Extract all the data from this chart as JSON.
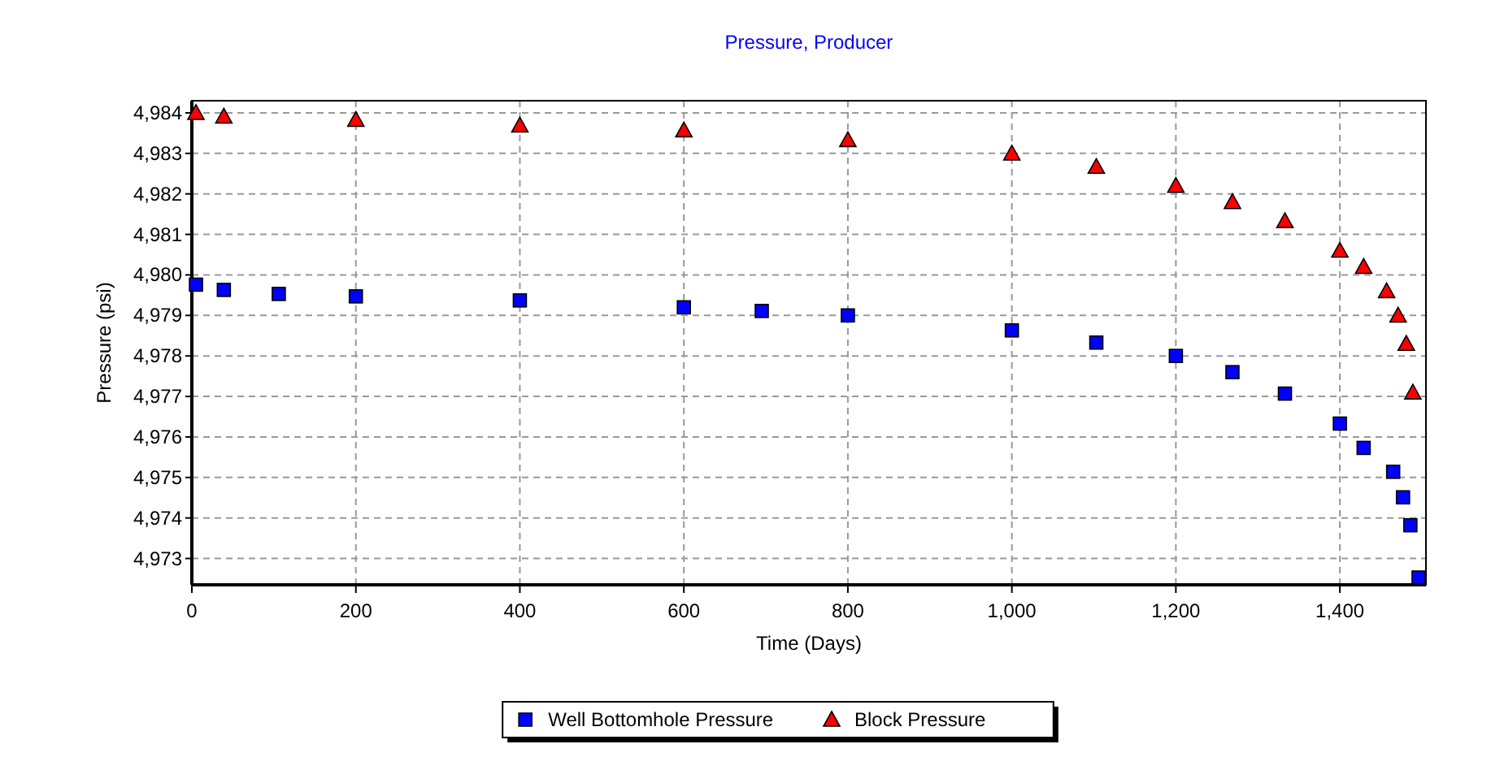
{
  "chart_data": {
    "type": "scatter",
    "title": "Pressure, Producer",
    "xlabel": "Time (Days)",
    "ylabel": "Pressure (psi)",
    "xlim": [
      0,
      1505
    ],
    "xticks": [
      0,
      200,
      400,
      600,
      800,
      {
        "value": 1000,
        "label": "1,000"
      },
      {
        "value": 1200,
        "label": "1,200"
      },
      {
        "value": 1400,
        "label": "1,400"
      }
    ],
    "ylim": [
      4972.35,
      4984.3
    ],
    "yticks": [
      {
        "value": 4973,
        "label": "4,973"
      },
      {
        "value": 4974,
        "label": "4,974"
      },
      {
        "value": 4975,
        "label": "4,975"
      },
      {
        "value": 4976,
        "label": "4,976"
      },
      {
        "value": 4977,
        "label": "4,977"
      },
      {
        "value": 4978,
        "label": "4,978"
      },
      {
        "value": 4979,
        "label": "4,979"
      },
      {
        "value": 4980,
        "label": "4,980"
      },
      {
        "value": 4981,
        "label": "4,981"
      },
      {
        "value": 4982,
        "label": "4,982"
      },
      {
        "value": 4983,
        "label": "4,983"
      },
      {
        "value": 4984,
        "label": "4,984"
      }
    ],
    "grid": true,
    "legend": "bottom",
    "series": [
      {
        "name": "Well Bottomhole Pressure",
        "color": "#0000ff",
        "marker": "square",
        "x": [
          5,
          39,
          106,
          200,
          400,
          600,
          695,
          800,
          1000,
          1103,
          1200,
          1269,
          1333,
          1400,
          1429,
          1465,
          1477,
          1486,
          1496
        ],
        "values": [
          4979.76,
          4979.63,
          4979.53,
          4979.47,
          4979.37,
          4979.2,
          4979.11,
          4979.0,
          4978.63,
          4978.33,
          4978.0,
          4977.6,
          4977.07,
          4976.33,
          4975.73,
          4975.14,
          4974.51,
          4973.82,
          4972.53
        ]
      },
      {
        "name": "Block Pressure",
        "color": "#ff0000",
        "marker": "triangle",
        "x": [
          5,
          39,
          200,
          400,
          600,
          800,
          1000,
          1103,
          1200,
          1269,
          1333,
          1400,
          1429,
          1457,
          1471,
          1481,
          1489
        ],
        "values": [
          4984.0,
          4983.91,
          4983.83,
          4983.69,
          4983.57,
          4983.33,
          4983.0,
          4982.67,
          4982.2,
          4981.8,
          4981.33,
          4980.6,
          4980.2,
          4979.6,
          4979.0,
          4978.3,
          4977.1
        ]
      }
    ]
  }
}
